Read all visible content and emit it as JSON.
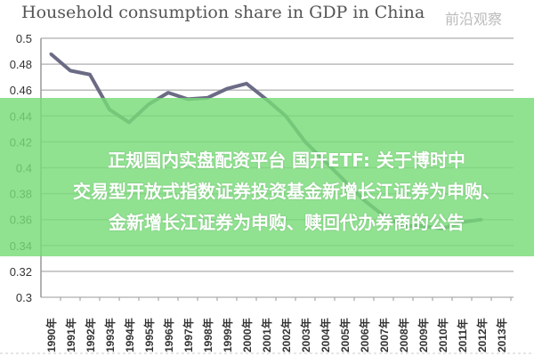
{
  "chart_data": {
    "type": "line",
    "title": "Household consumption share in GDP in China",
    "xlabel": "",
    "ylabel": "",
    "categories": [
      "1990年",
      "1991年",
      "1992年",
      "1993年",
      "1994年",
      "1995年",
      "1996年",
      "1997年",
      "1998年",
      "1999年",
      "2000年",
      "2001年",
      "2002年",
      "2003年",
      "2004年",
      "2005年",
      "2006年",
      "2007年",
      "2008年",
      "2009年",
      "2010年",
      "2011年",
      "2012年",
      "2013年"
    ],
    "values": [
      0.488,
      0.475,
      0.472,
      0.445,
      0.435,
      0.449,
      0.458,
      0.453,
      0.454,
      0.461,
      0.465,
      0.453,
      0.44,
      0.42,
      0.405,
      0.39,
      0.375,
      0.363,
      0.355,
      0.355,
      0.353,
      0.358,
      0.36,
      null
    ],
    "yticks": [
      "0.3",
      "0.32",
      "0.34",
      "0.36",
      "0.38",
      "0.4",
      "0.42",
      "0.44",
      "0.46",
      "0.48",
      "0.5"
    ],
    "ylim": [
      0.3,
      0.5
    ],
    "grid": true,
    "line_color": "#6b6b85"
  },
  "overlay": {
    "line1": "正规国内实盘配资平台 国开ETF: 关于博时中",
    "line2": "交易型开放式指数证券投资基金新增长江证券为申购、",
    "line3": "金新增长江证券为申购、赎回代办券商的公告",
    "band_color": "#7ddc7d"
  },
  "watermark": "前沿观察"
}
